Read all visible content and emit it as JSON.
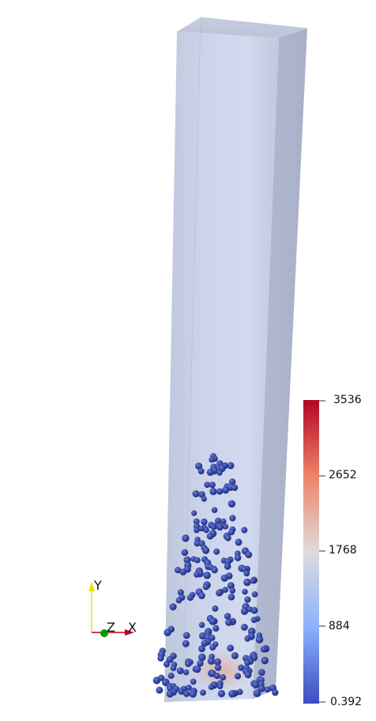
{
  "colorbar": {
    "max_label": "3536",
    "tick_2652": "2652",
    "tick_1768": "1768",
    "tick_884": "884",
    "min_label": "0.392",
    "colors": [
      "#b40426",
      "#ee8468",
      "#dddcdc",
      "#8db0fe",
      "#3b4cc0"
    ]
  },
  "axes": {
    "x_label": "X",
    "y_label": "Y",
    "z_label": "Z",
    "x_color": "#b3001b",
    "y_color": "#e6e600",
    "z_color": "#009900"
  },
  "scene": {
    "box_color": "#c8d0e4",
    "particle_color": "#2b3a9c",
    "particle_count": 230
  }
}
